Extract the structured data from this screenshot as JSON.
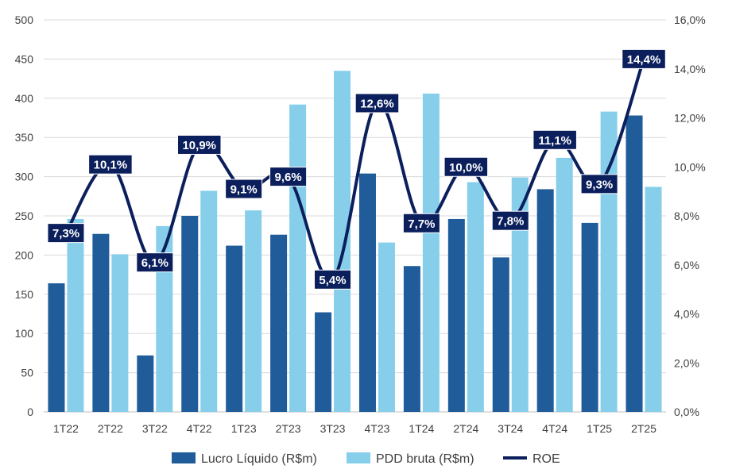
{
  "chart_data": {
    "type": "bar",
    "categories": [
      "1T22",
      "2T22",
      "3T22",
      "4T22",
      "1T23",
      "2T23",
      "3T23",
      "4T23",
      "1T24",
      "2T24",
      "3T24",
      "4T24",
      "1T25",
      "2T25"
    ],
    "series": [
      {
        "name": "Lucro Líquido (R$m)",
        "type": "bar",
        "axis": "left",
        "color": "#1F5C99",
        "values": [
          164,
          227,
          72,
          250,
          212,
          226,
          127,
          304,
          186,
          246,
          197,
          284,
          241,
          378
        ]
      },
      {
        "name": "PDD bruta (R$m)",
        "type": "bar",
        "axis": "right-none",
        "color": "#87CEEB",
        "values": [
          246,
          201,
          237,
          282,
          257,
          392,
          435,
          216,
          406,
          293,
          299,
          324,
          383,
          287
        ]
      },
      {
        "name": "ROE",
        "type": "line",
        "axis": "right",
        "color": "#0B1F5C",
        "values": [
          7.3,
          10.1,
          6.1,
          10.9,
          9.1,
          9.6,
          5.4,
          12.6,
          7.7,
          10.0,
          7.8,
          11.1,
          9.3,
          14.4
        ],
        "labels": [
          "7,3%",
          "10,1%",
          "6,1%",
          "10,9%",
          "9,1%",
          "9,6%",
          "5,4%",
          "12,6%",
          "7,7%",
          "10,0%",
          "7,8%",
          "11,1%",
          "9,3%",
          "14,4%"
        ]
      }
    ],
    "y_left": {
      "lim": [
        0,
        500
      ],
      "ticks": [
        0,
        50,
        100,
        150,
        200,
        250,
        300,
        350,
        400,
        450,
        500
      ],
      "tick_labels": [
        "0",
        "50",
        "100",
        "150",
        "200",
        "250",
        "300",
        "350",
        "400",
        "450",
        "500"
      ]
    },
    "y_right": {
      "lim": [
        0,
        16
      ],
      "ticks": [
        0,
        2,
        4,
        6,
        8,
        10,
        12,
        14,
        16
      ],
      "tick_labels": [
        "0,0%",
        "2,0%",
        "4,0%",
        "6,0%",
        "8,0%",
        "10,0%",
        "12,0%",
        "14,0%",
        "16,0%"
      ]
    },
    "grid": true,
    "legend_position": "bottom",
    "legend": [
      "Lucro Líquido (R$m)",
      "PDD bruta (R$m)",
      "ROE"
    ]
  }
}
